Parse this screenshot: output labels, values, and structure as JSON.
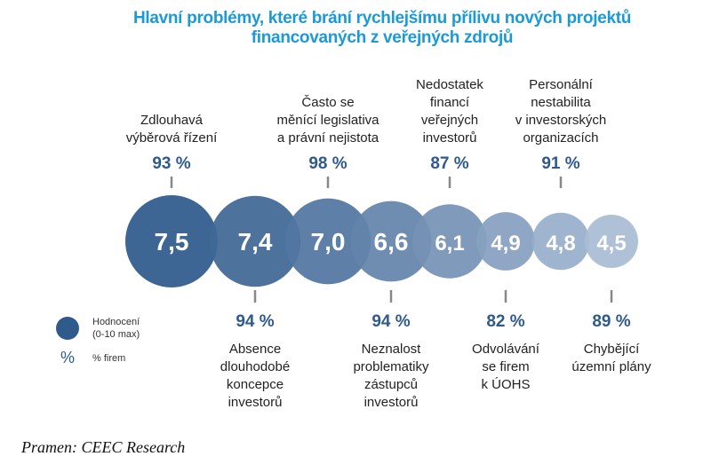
{
  "chart_data": {
    "type": "bubble",
    "title": [
      "Hlavní problémy, které brání rychlejšímu přílivu nových projektů",
      "financovaných z veřejných zdrojů"
    ],
    "items": [
      {
        "label": [
          "Zdlouhavá",
          "výběrová řízení"
        ],
        "rating": "7,5",
        "value": 7.5,
        "percent": "93 %",
        "position": "top"
      },
      {
        "label": [
          "Absence",
          "dlouhodobé",
          "koncepce",
          "investorů"
        ],
        "rating": "7,4",
        "value": 7.4,
        "percent": "94 %",
        "position": "bottom"
      },
      {
        "label": [
          "Často se",
          "měnící legislativa",
          "a právní nejistota"
        ],
        "rating": "7,0",
        "value": 7.0,
        "percent": "98 %",
        "position": "top"
      },
      {
        "label": [
          "Neznalost",
          "problematiky",
          "zástupců",
          "investorů"
        ],
        "rating": "6,6",
        "value": 6.6,
        "percent": "94 %",
        "position": "bottom"
      },
      {
        "label": [
          "Nedostatek",
          "financí",
          "veřejných",
          "investorů"
        ],
        "rating": "6,1",
        "value": 6.1,
        "percent": "87 %",
        "position": "top"
      },
      {
        "label": [
          "Odvolávání",
          "se firem",
          "k ÚOHS"
        ],
        "rating": "4,9",
        "value": 4.9,
        "percent": "82 %",
        "position": "bottom"
      },
      {
        "label": [
          "Personální",
          "nestabilita",
          "v investorských",
          "organizacích"
        ],
        "rating": "4,8",
        "value": 4.8,
        "percent": "91 %",
        "position": "top"
      },
      {
        "label": [
          "Chybějící",
          "územní plány"
        ],
        "rating": "4,5",
        "value": 4.5,
        "percent": "89 %",
        "position": "bottom"
      }
    ],
    "legend": {
      "bubble_label": [
        "Hodnocení",
        "(0-10 max)"
      ],
      "percent_symbol": "%",
      "percent_label": "% firem"
    },
    "colors": {
      "title": "#1a9ad6",
      "bubble_dark": "#2f5a8c",
      "bubble_light": "#a9bcd4",
      "percent": "#2f5a8c",
      "tick": "#888888"
    }
  },
  "source": "Pramen: CEEC Research"
}
